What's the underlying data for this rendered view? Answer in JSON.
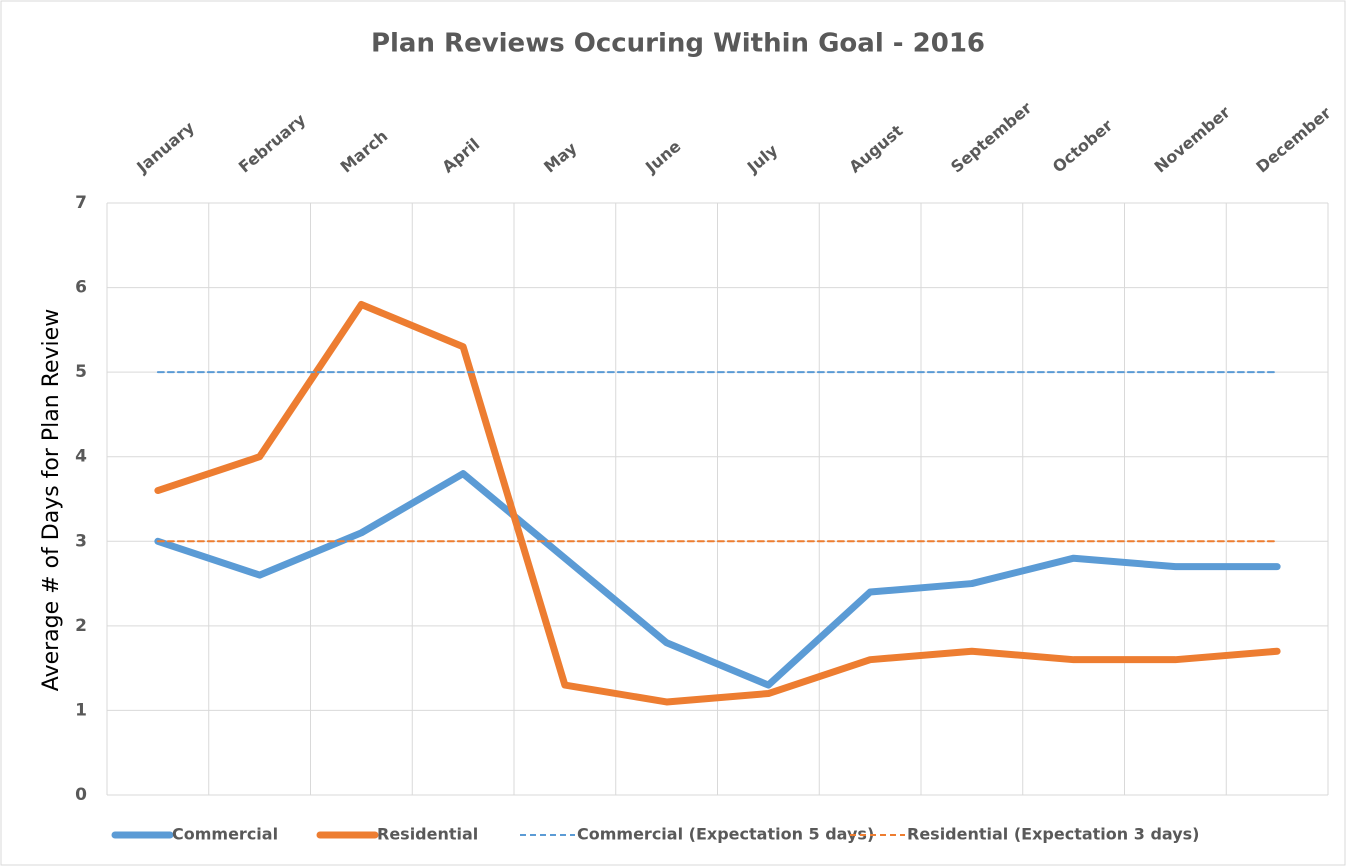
{
  "chart_data": {
    "type": "line",
    "title": "Plan Reviews Occuring Within Goal - 2016",
    "y_label": "Average # of Days for Plan Review",
    "categories": [
      "January",
      "February",
      "March",
      "April",
      "May",
      "June",
      "July",
      "August",
      "September",
      "October",
      "November",
      "December"
    ],
    "series": [
      {
        "name": "Commercial",
        "color": "#5b9bd5",
        "style": "solid",
        "values": [
          3.0,
          2.6,
          3.1,
          3.8,
          2.8,
          1.8,
          1.3,
          2.4,
          2.5,
          2.8,
          2.7,
          2.7
        ]
      },
      {
        "name": "Residential",
        "color": "#ed7d31",
        "style": "solid",
        "values": [
          3.6,
          4.0,
          5.8,
          5.3,
          1.3,
          1.1,
          1.2,
          1.6,
          1.7,
          1.6,
          1.6,
          1.7
        ]
      },
      {
        "name": "Commercial (Expectation 5 days)",
        "color": "#5b9bd5",
        "style": "dashed",
        "values": [
          5,
          5,
          5,
          5,
          5,
          5,
          5,
          5,
          5,
          5,
          5,
          5
        ]
      },
      {
        "name": "Residential (Expectation 3 days)",
        "color": "#ed7d31",
        "style": "dashed",
        "values": [
          3,
          3,
          3,
          3,
          3,
          3,
          3,
          3,
          3,
          3,
          3,
          3
        ]
      }
    ],
    "ylim": [
      0,
      7
    ],
    "yticks": [
      0,
      1,
      2,
      3,
      4,
      5,
      6,
      7
    ],
    "grid": true,
    "legend": "bottom"
  }
}
